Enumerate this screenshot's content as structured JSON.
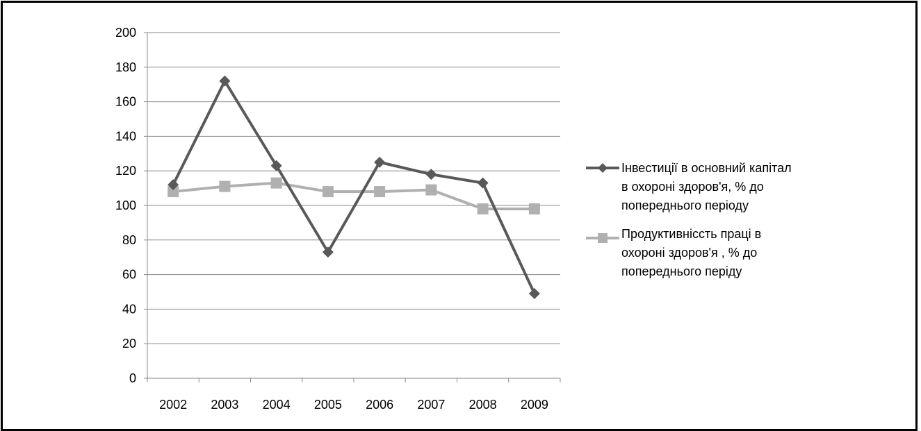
{
  "chart_data": {
    "type": "line",
    "categories": [
      "2002",
      "2003",
      "2004",
      "2005",
      "2006",
      "2007",
      "2008",
      "2009"
    ],
    "y_ticks": [
      "0",
      "20",
      "40",
      "60",
      "80",
      "100",
      "120",
      "140",
      "160",
      "180",
      "200"
    ],
    "ylim": [
      0,
      200
    ],
    "grid": true,
    "legend_position": "right",
    "series": [
      {
        "name": "Інвестиції в основний капітал в охороні здоров'я, % до попереднього періоду",
        "name_lines": [
          "Інвестиції в основний капітал",
          "в охороні здоров'я, % до",
          "попереднього періоду"
        ],
        "marker": "diamond",
        "color": "#595959",
        "values": [
          112,
          172,
          123,
          73,
          125,
          118,
          113,
          49
        ]
      },
      {
        "name": "Продуктивнісcть праці в охороні здоров'я , % до попереднього періду",
        "name_lines": [
          "Продуктивнісcть праці в",
          "охороні здоров'я , % до",
          "попереднього періду"
        ],
        "marker": "square",
        "color": "#b0b0b0",
        "values": [
          108,
          111,
          113,
          108,
          108,
          109,
          98,
          98
        ]
      }
    ]
  }
}
